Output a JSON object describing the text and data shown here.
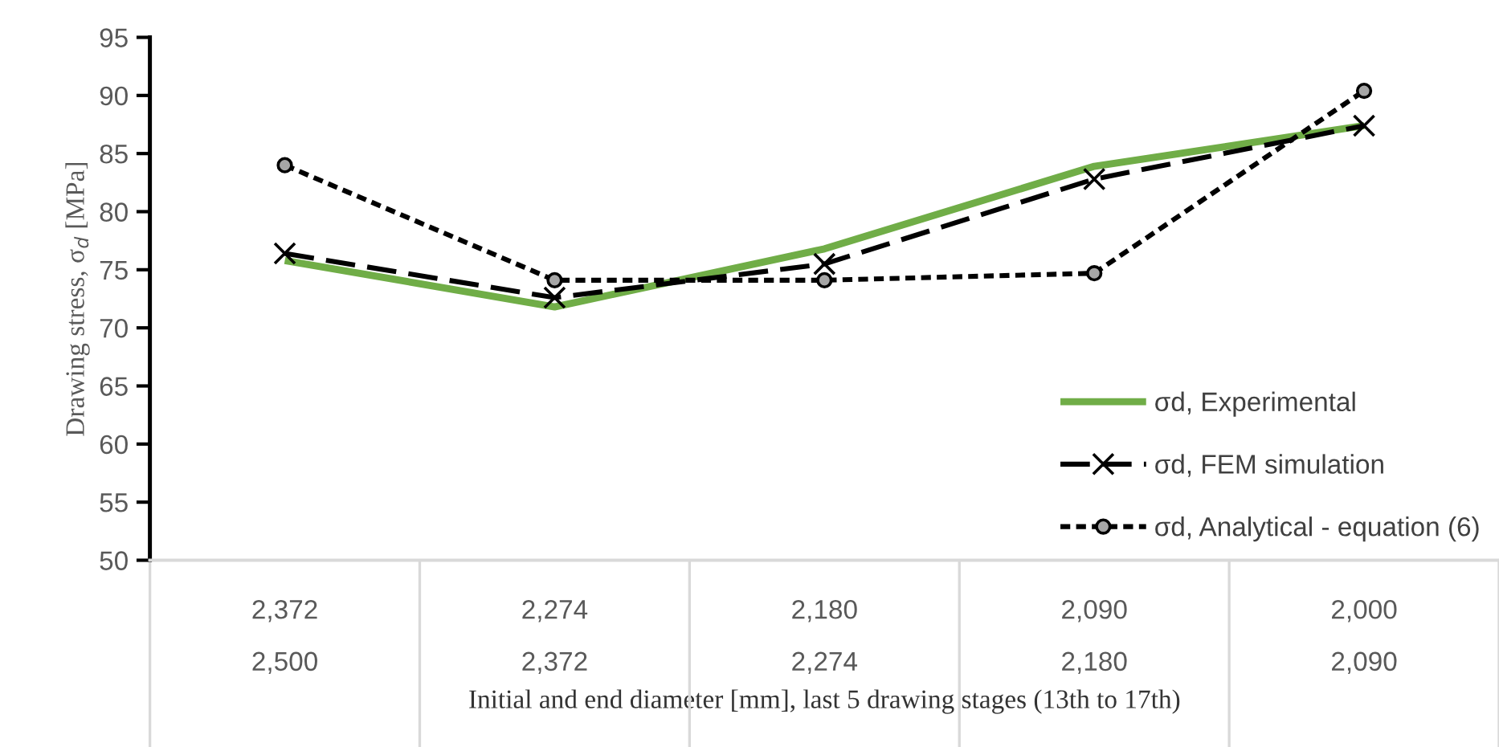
{
  "chart_data": {
    "type": "line",
    "xlabel": "Initial and end diameter [mm], last 5 drawing stages (13th to 17th)",
    "ylabel": "Drawing stress, σ$_{d}$ [MPa]",
    "categories": [
      "2,372\n\n2,500",
      "2,274\n\n2,372",
      "2,180\n\n2,274",
      "2,090\n\n2,180",
      "2,000\n\n2,090"
    ],
    "series": [
      {
        "name": "σd, Experimental",
        "color": "#70ad47",
        "values": [
          75.8,
          71.8,
          76.8,
          83.9,
          87.4
        ],
        "marker": "none",
        "line_style": "solid"
      },
      {
        "name": "σd, FEM simulation",
        "color": "#000000",
        "values": [
          76.4,
          72.6,
          75.5,
          82.8,
          87.4
        ],
        "marker": "cross",
        "line_style": "dashed"
      },
      {
        "name": "σd, Analytical - equation (6)",
        "color": "#000000",
        "values": [
          84.0,
          74.1,
          74.1,
          74.7,
          90.4
        ],
        "marker": "circle",
        "line_style": "dotted"
      }
    ],
    "ylim": [
      50,
      95
    ],
    "yticks": [
      50,
      55,
      60,
      65,
      70,
      75,
      80,
      85,
      90,
      95
    ],
    "grid": false,
    "legend": "right"
  }
}
